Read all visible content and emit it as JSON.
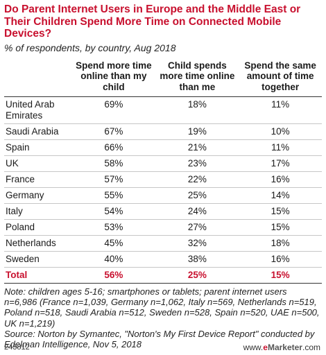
{
  "title": "Do Parent Internet Users in Europe and the Middle East or Their Children Spend More Time on Connected Mobile Devices?",
  "subtitle": "% of respondents, by country, Aug 2018",
  "chart_data": {
    "type": "table",
    "columns": [
      "",
      "Spend more time online than my child",
      "Child spends more time online than me",
      "Spend the same amount of time together"
    ],
    "rows": [
      {
        "country": "United Arab Emirates",
        "values": [
          "69%",
          "18%",
          "11%"
        ]
      },
      {
        "country": "Saudi Arabia",
        "values": [
          "67%",
          "19%",
          "10%"
        ]
      },
      {
        "country": "Spain",
        "values": [
          "66%",
          "21%",
          "11%"
        ]
      },
      {
        "country": "UK",
        "values": [
          "58%",
          "23%",
          "17%"
        ]
      },
      {
        "country": "France",
        "values": [
          "57%",
          "22%",
          "16%"
        ]
      },
      {
        "country": "Germany",
        "values": [
          "55%",
          "25%",
          "14%"
        ]
      },
      {
        "country": "Italy",
        "values": [
          "54%",
          "24%",
          "15%"
        ]
      },
      {
        "country": "Poland",
        "values": [
          "53%",
          "27%",
          "15%"
        ]
      },
      {
        "country": "Netherlands",
        "values": [
          "45%",
          "32%",
          "18%"
        ]
      },
      {
        "country": "Sweden",
        "values": [
          "40%",
          "38%",
          "16%"
        ]
      }
    ],
    "total": {
      "country": "Total",
      "values": [
        "56%",
        "25%",
        "15%"
      ]
    }
  },
  "note": "Note: children ages 5-16; smartphones or tablets; parent internet users n=6,986 (France n=1,039, Germany n=1,062, Italy n=569, Netherlands n=519, Poland n=518, Saudi Arabia n=512, Sweden n=528, Spain n=520, UAE n=500, UK n=1,219)",
  "source": "Source: Norton by Symantec, \"Norton's My First Device Report\" conducted by Edelman Intelligence, Nov 5, 2018",
  "footer": {
    "code": "243812",
    "brand_prefix": "www.",
    "brand_e": "e",
    "brand_rest": "Marketer",
    "brand_suffix": ".com"
  },
  "colors": {
    "accent": "#c8102e",
    "text": "#1a1a1a"
  }
}
